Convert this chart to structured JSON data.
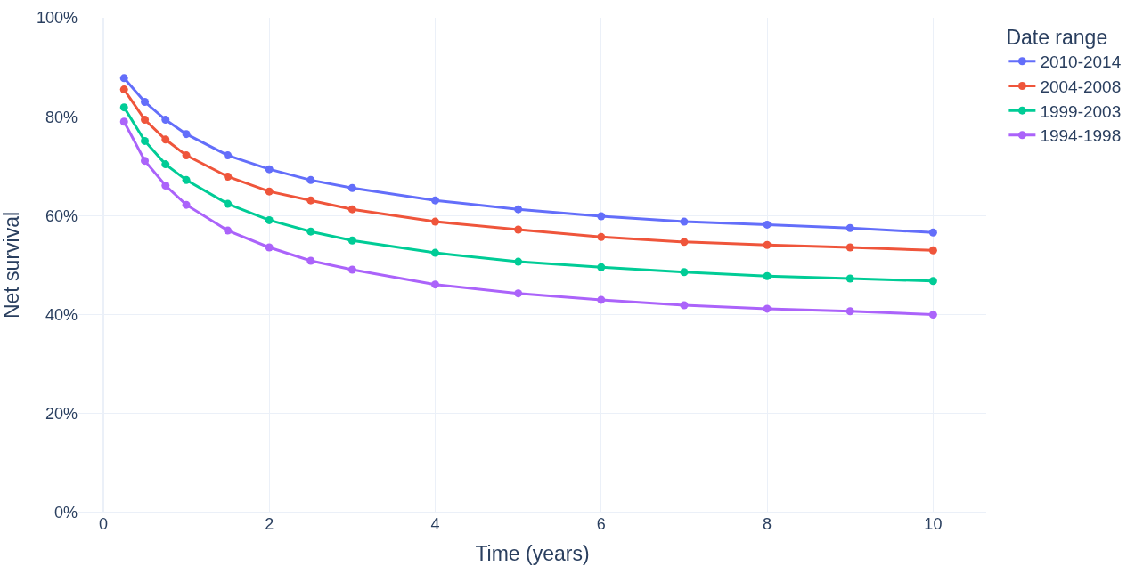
{
  "chart_data": {
    "type": "line",
    "xlabel": "Time (years)",
    "ylabel": "Net survival",
    "legend_title": "Date range",
    "legend": "right",
    "grid": true,
    "marker": "circle",
    "line_style": "solid",
    "x": [
      0.25,
      0.5,
      0.75,
      1,
      1.5,
      2,
      2.5,
      3,
      4,
      5,
      6,
      7,
      8,
      9,
      10
    ],
    "xlim": [
      -0.3,
      10.64
    ],
    "xticks": [
      0,
      2,
      4,
      6,
      8,
      10
    ],
    "ylim": [
      0,
      100
    ],
    "yticks": [
      {
        "value": 0,
        "label": "0%"
      },
      {
        "value": 20,
        "label": "20%"
      },
      {
        "value": 40,
        "label": "40%"
      },
      {
        "value": 60,
        "label": "60%"
      },
      {
        "value": 80,
        "label": "80%"
      },
      {
        "value": 100,
        "label": "100%"
      }
    ],
    "series": [
      {
        "name": "2010-2014",
        "color": "#636efa",
        "values": [
          87.8,
          83.0,
          79.4,
          76.5,
          72.2,
          69.4,
          67.2,
          65.6,
          63.1,
          61.3,
          59.9,
          58.8,
          58.2,
          57.5,
          56.6
        ]
      },
      {
        "name": "2004-2008",
        "color": "#ef553b",
        "values": [
          85.5,
          79.4,
          75.4,
          72.2,
          67.9,
          64.9,
          63.1,
          61.3,
          58.8,
          57.2,
          55.7,
          54.7,
          54.1,
          53.6,
          53.0
        ]
      },
      {
        "name": "1999-2003",
        "color": "#00cc96",
        "values": [
          81.9,
          75.1,
          70.4,
          67.2,
          62.4,
          59.1,
          56.8,
          55.0,
          52.5,
          50.7,
          49.6,
          48.6,
          47.8,
          47.3,
          46.8
        ]
      },
      {
        "name": "1994-1998",
        "color": "#ab63fa",
        "values": [
          79.0,
          71.1,
          66.1,
          62.2,
          57.0,
          53.6,
          50.9,
          49.1,
          46.1,
          44.3,
          43.0,
          41.9,
          41.2,
          40.7,
          40.0
        ]
      }
    ]
  }
}
